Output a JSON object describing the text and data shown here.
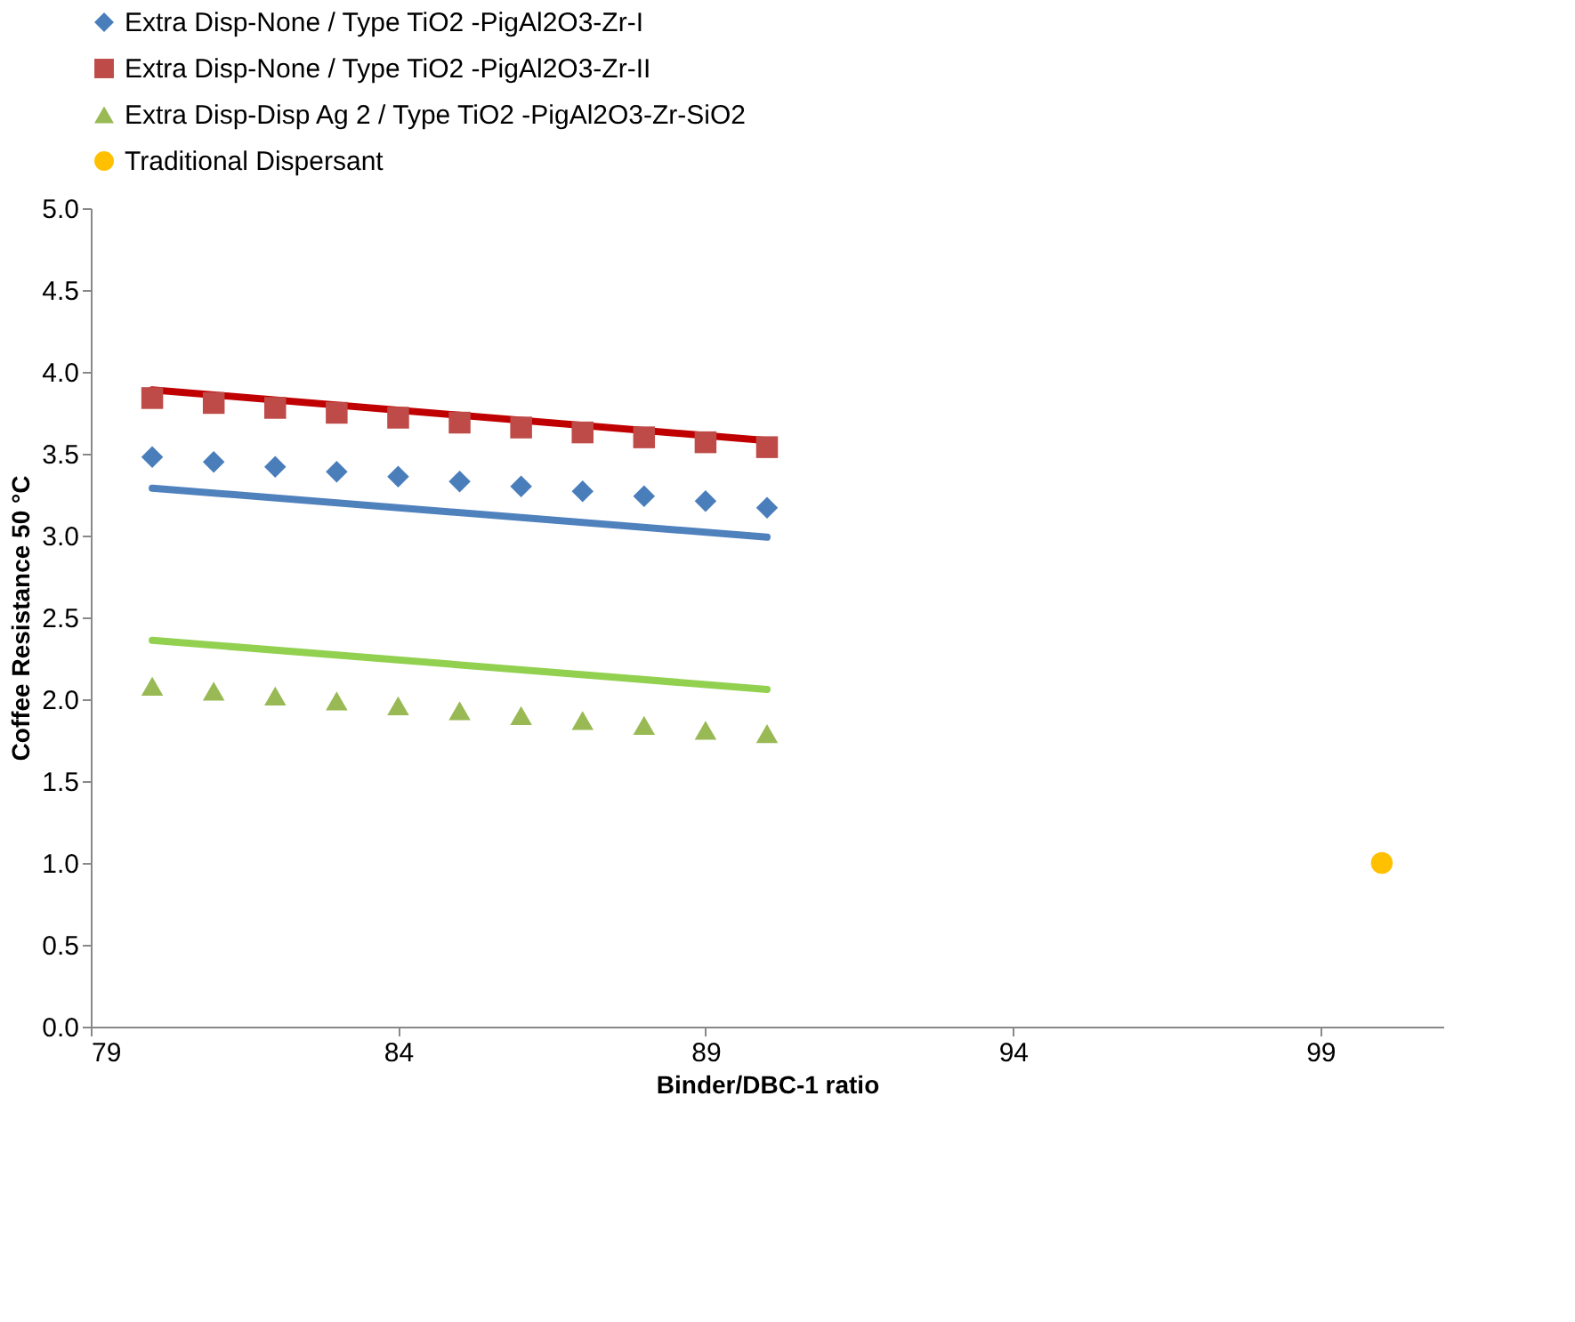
{
  "chart_data": {
    "type": "scatter",
    "xlabel": "Binder/DBC-1 ratio",
    "ylabel": "Coffee Resistance 50 °C",
    "x": [
      80,
      81,
      82,
      83,
      84,
      85,
      86,
      87,
      88,
      89,
      90
    ],
    "series": [
      {
        "name": "Extra Disp-None / Type TiO2 -PigAl2O3-Zr-I",
        "type": "scatter",
        "marker": "diamond",
        "color": "#4a7ebb",
        "values": [
          3.48,
          3.45,
          3.42,
          3.39,
          3.36,
          3.33,
          3.3,
          3.27,
          3.24,
          3.21,
          3.17
        ]
      },
      {
        "name": "Extra Disp-None / Type TiO2 -PigAl2O3-Zr-II",
        "type": "scatter",
        "marker": "square",
        "color": "#be4b48",
        "values": [
          3.84,
          3.81,
          3.78,
          3.75,
          3.72,
          3.69,
          3.66,
          3.63,
          3.6,
          3.57,
          3.54
        ]
      },
      {
        "name": "Extra Disp-Disp Ag 2 / Type TiO2 -PigAl2O3-Zr-SiO2",
        "type": "scatter",
        "marker": "triangle",
        "color": "#98b954",
        "values": [
          2.08,
          2.05,
          2.02,
          1.99,
          1.96,
          1.93,
          1.9,
          1.87,
          1.84,
          1.81,
          1.79
        ]
      },
      {
        "name": "Traditional Dispersant",
        "type": "scatter",
        "marker": "circle",
        "color": "#ffc000",
        "x": [
          100
        ],
        "values": [
          1.0
        ]
      },
      {
        "type": "line",
        "color": "#4f81bd",
        "x": [
          80,
          90
        ],
        "values": [
          3.29,
          2.99
        ]
      },
      {
        "type": "line",
        "color": "#c00000",
        "x": [
          80,
          90
        ],
        "values": [
          3.89,
          3.58
        ]
      },
      {
        "type": "line",
        "color": "#92d050",
        "x": [
          80,
          90
        ],
        "values": [
          2.36,
          2.06
        ]
      }
    ],
    "xlim": [
      79,
      101
    ],
    "xticks": [
      79,
      84,
      89,
      94,
      99
    ],
    "ylim": [
      0,
      5
    ],
    "yticks": [
      {
        "value": 0,
        "label": "0.0"
      },
      {
        "value": 0.5,
        "label": "0.5"
      },
      {
        "value": 1,
        "label": "1.0"
      },
      {
        "value": 1.5,
        "label": "1.5"
      },
      {
        "value": 2,
        "label": "2.0"
      },
      {
        "value": 2.5,
        "label": "2.5"
      },
      {
        "value": 3,
        "label": "3.0"
      },
      {
        "value": 3.5,
        "label": "3.5"
      },
      {
        "value": 4,
        "label": "4.0"
      },
      {
        "value": 4.5,
        "label": "4.5"
      },
      {
        "value": 5,
        "label": "5.0"
      }
    ],
    "grid": false,
    "legend": "top"
  }
}
